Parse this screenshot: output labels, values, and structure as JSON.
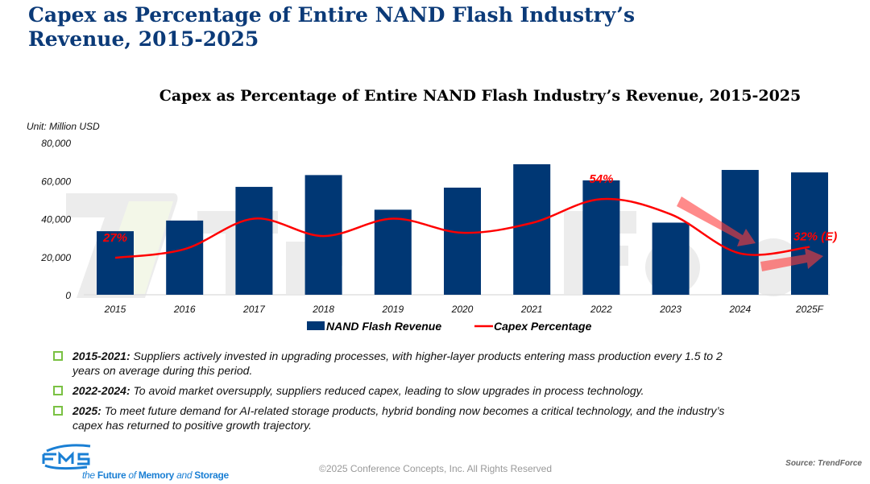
{
  "slide": {
    "title": "Capex as Percentage of Entire NAND Flash Industry’s Revenue, 2015-2025"
  },
  "chart_data": {
    "type": "bar+line",
    "title": "Capex as Percentage of Entire NAND Flash Industry’s Revenue, 2015-2025",
    "unit_label": "Unit: Million USD",
    "categories": [
      "2015",
      "2016",
      "2017",
      "2018",
      "2019",
      "2020",
      "2021",
      "2022",
      "2023",
      "2024",
      "2025F"
    ],
    "ylim": [
      0,
      80000
    ],
    "yticks": [
      "0",
      "20,000",
      "40,000",
      "60,000",
      "80,000"
    ],
    "grid": false,
    "legend_placement": "bottom",
    "series": [
      {
        "name": "NAND Flash Revenue",
        "type": "bar",
        "color": "#003774",
        "values": [
          33400,
          39000,
          56700,
          62900,
          44700,
          56300,
          68600,
          60100,
          37900,
          65600,
          64300
        ]
      },
      {
        "name": "Capex Percentage",
        "type": "line",
        "color": "#ff0000",
        "unit": "%",
        "values": [
          27,
          31,
          45,
          37,
          45,
          38.5,
          43,
          54,
          47,
          29,
          32
        ]
      }
    ],
    "annotations": [
      {
        "category": "2015",
        "text": "27%"
      },
      {
        "category": "2022",
        "text": "54%"
      },
      {
        "category": "2025F",
        "text": "32% (E)"
      }
    ],
    "trend_arrows": [
      "down-2023-2024",
      "up-2024-2025F"
    ],
    "watermark": "TrendForce"
  },
  "bullets": [
    {
      "label": "2015-2021:",
      "text": " Suppliers actively invested in upgrading processes, with higher-layer products entering mass production every 1.5 to 2 years on average during this period."
    },
    {
      "label": "2022-2024:",
      "text": " To avoid market oversupply, suppliers reduced capex, leading to slow upgrades in process technology."
    },
    {
      "label": "2025:",
      "text": " To meet future demand for AI-related storage products, hybrid bonding now becomes a critical technology, and the industry’s capex has returned to positive growth trajectory."
    }
  ],
  "footer": {
    "logo": "FMS",
    "tagline_parts": [
      "the ",
      "Future",
      " of ",
      "Memory",
      " and ",
      "Storage"
    ],
    "copyright": "©2025 Conference Concepts, Inc. All Rights Reserved",
    "source": "Source: TrendForce"
  },
  "colors": {
    "title": "#0b3a78",
    "bar": "#003774",
    "line": "#ff0000",
    "bullet_box": "#7ac143",
    "logo": "#1a7fd4"
  }
}
